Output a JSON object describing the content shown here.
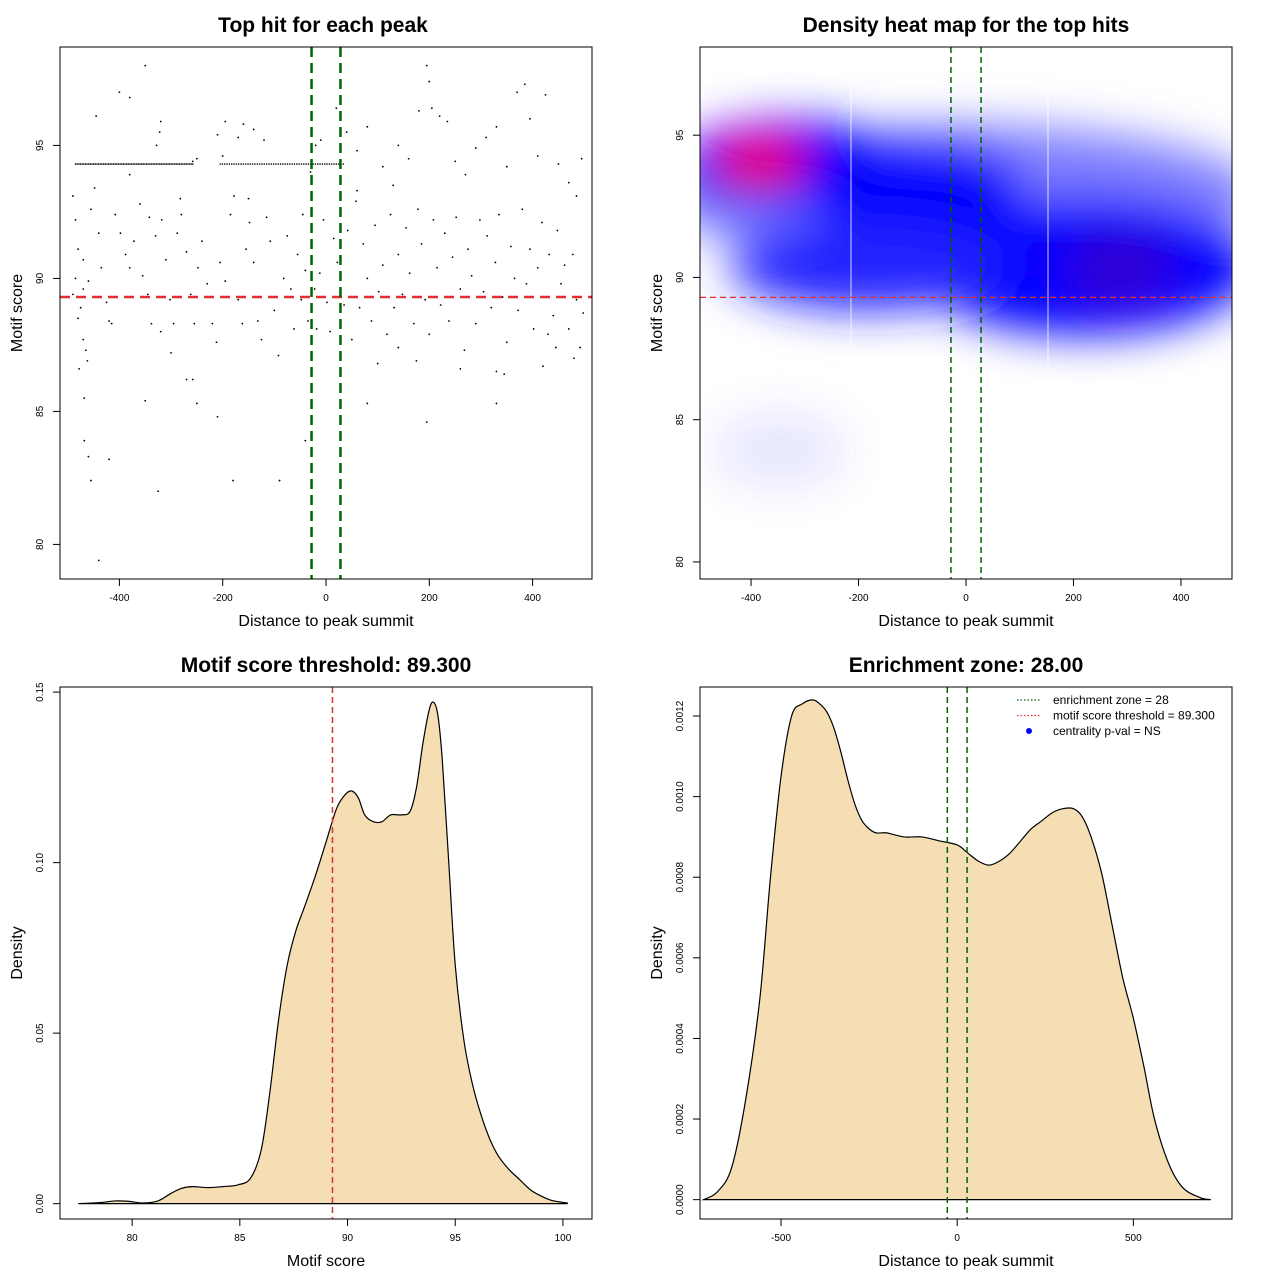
{
  "chart_data": [
    {
      "id": "scatter",
      "type": "scatter",
      "title": "Top hit for each peak",
      "xlabel": "Distance to peak summit",
      "ylabel": "Motif score",
      "xlim": [
        -515,
        515
      ],
      "ylim": [
        78.7,
        98.7
      ],
      "xticks": [
        -400,
        -200,
        0,
        200,
        400
      ],
      "yticks": [
        80,
        85,
        90,
        95
      ],
      "threshold": 89.3,
      "zone": [
        -28,
        28
      ],
      "line_colors": {
        "threshold": "#e03030",
        "zone": "#006400"
      },
      "points": [
        [
          -350,
          98.0
        ],
        [
          -380,
          96.8
        ],
        [
          -400,
          97.0
        ],
        [
          -445,
          96.1
        ],
        [
          -320,
          95.9
        ],
        [
          -322,
          95.5
        ],
        [
          -328,
          95.0
        ],
        [
          -195,
          95.9
        ],
        [
          -160,
          95.8
        ],
        [
          -140,
          95.6
        ],
        [
          -210,
          95.4
        ],
        [
          -170,
          95.3
        ],
        [
          -120,
          95.2
        ],
        [
          -200,
          94.6
        ],
        [
          -250,
          94.5
        ],
        [
          -258,
          94.4
        ],
        [
          -30,
          94.0
        ],
        [
          -20,
          95.0
        ],
        [
          -10,
          95.2
        ],
        [
          20,
          96.4
        ],
        [
          40,
          95.5
        ],
        [
          60,
          94.8
        ],
        [
          80,
          95.7
        ],
        [
          110,
          94.2
        ],
        [
          140,
          95.0
        ],
        [
          160,
          94.5
        ],
        [
          180,
          96.3
        ],
        [
          195,
          98.0
        ],
        [
          200,
          97.4
        ],
        [
          205,
          96.4
        ],
        [
          220,
          96.1
        ],
        [
          235,
          95.9
        ],
        [
          250,
          94.4
        ],
        [
          290,
          94.9
        ],
        [
          310,
          95.3
        ],
        [
          330,
          95.7
        ],
        [
          350,
          94.2
        ],
        [
          370,
          97.0
        ],
        [
          385,
          97.3
        ],
        [
          395,
          96.0
        ],
        [
          410,
          94.6
        ],
        [
          425,
          96.9
        ],
        [
          450,
          94.3
        ],
        [
          470,
          93.6
        ],
        [
          485,
          93.1
        ],
        [
          495,
          94.5
        ],
        [
          270,
          93.9
        ],
        [
          130,
          93.5
        ],
        [
          -490,
          93.1
        ],
        [
          -485,
          92.2
        ],
        [
          -480,
          91.1
        ],
        [
          -470,
          90.7
        ],
        [
          -460,
          89.9
        ],
        [
          -455,
          92.6
        ],
        [
          -448,
          93.4
        ],
        [
          -440,
          91.7
        ],
        [
          -435,
          90.4
        ],
        [
          -425,
          89.1
        ],
        [
          -420,
          88.4
        ],
        [
          -415,
          88.3
        ],
        [
          -408,
          92.4
        ],
        [
          -398,
          91.7
        ],
        [
          -388,
          90.9
        ],
        [
          -380,
          90.4
        ],
        [
          -372,
          91.4
        ],
        [
          -360,
          92.8
        ],
        [
          -355,
          90.1
        ],
        [
          -345,
          89.4
        ],
        [
          -338,
          88.3
        ],
        [
          -330,
          91.6
        ],
        [
          -318,
          92.2
        ],
        [
          -310,
          90.7
        ],
        [
          -302,
          89.2
        ],
        [
          -295,
          88.3
        ],
        [
          -288,
          91.7
        ],
        [
          -280,
          92.4
        ],
        [
          -270,
          91.0
        ],
        [
          -262,
          89.4
        ],
        [
          -255,
          88.3
        ],
        [
          -248,
          90.4
        ],
        [
          -240,
          91.4
        ],
        [
          -230,
          89.8
        ],
        [
          -220,
          88.3
        ],
        [
          -212,
          87.6
        ],
        [
          -205,
          90.6
        ],
        [
          -195,
          89.9
        ],
        [
          -185,
          92.4
        ],
        [
          -178,
          93.1
        ],
        [
          -170,
          89.2
        ],
        [
          -162,
          88.3
        ],
        [
          -155,
          91.1
        ],
        [
          -148,
          92.1
        ],
        [
          -140,
          90.6
        ],
        [
          -132,
          88.4
        ],
        [
          -125,
          87.7
        ],
        [
          -115,
          92.3
        ],
        [
          -108,
          91.4
        ],
        [
          -100,
          88.8
        ],
        [
          -92,
          87.1
        ],
        [
          -82,
          90.0
        ],
        [
          -75,
          91.6
        ],
        [
          -68,
          89.6
        ],
        [
          -62,
          88.1
        ],
        [
          -55,
          90.9
        ],
        [
          -48,
          89.2
        ],
        [
          -45,
          92.4
        ],
        [
          -40,
          90.3
        ],
        [
          -35,
          88.4
        ],
        [
          -28,
          91.4
        ],
        [
          -22,
          89.6
        ],
        [
          -18,
          88.1
        ],
        [
          -12,
          90.2
        ],
        [
          -5,
          92.2
        ],
        [
          2,
          89.1
        ],
        [
          8,
          88.0
        ],
        [
          15,
          91.5
        ],
        [
          22,
          90.6
        ],
        [
          35,
          89.0
        ],
        [
          42,
          91.8
        ],
        [
          50,
          87.7
        ],
        [
          58,
          92.9
        ],
        [
          65,
          88.9
        ],
        [
          72,
          91.3
        ],
        [
          80,
          90.0
        ],
        [
          88,
          88.4
        ],
        [
          95,
          92.0
        ],
        [
          102,
          89.5
        ],
        [
          110,
          90.5
        ],
        [
          118,
          87.9
        ],
        [
          125,
          92.4
        ],
        [
          132,
          88.9
        ],
        [
          140,
          90.9
        ],
        [
          148,
          89.4
        ],
        [
          155,
          91.9
        ],
        [
          162,
          90.2
        ],
        [
          170,
          88.3
        ],
        [
          178,
          92.6
        ],
        [
          185,
          91.3
        ],
        [
          192,
          89.2
        ],
        [
          200,
          87.9
        ],
        [
          208,
          92.2
        ],
        [
          215,
          90.4
        ],
        [
          222,
          89.0
        ],
        [
          230,
          91.7
        ],
        [
          238,
          88.4
        ],
        [
          245,
          90.8
        ],
        [
          252,
          92.3
        ],
        [
          260,
          89.6
        ],
        [
          268,
          87.3
        ],
        [
          275,
          91.1
        ],
        [
          282,
          90.1
        ],
        [
          290,
          88.3
        ],
        [
          298,
          92.2
        ],
        [
          305,
          89.5
        ],
        [
          312,
          91.6
        ],
        [
          320,
          88.9
        ],
        [
          328,
          90.6
        ],
        [
          335,
          92.4
        ],
        [
          342,
          89.3
        ],
        [
          350,
          87.6
        ],
        [
          358,
          91.2
        ],
        [
          365,
          90.0
        ],
        [
          372,
          88.8
        ],
        [
          380,
          92.6
        ],
        [
          388,
          89.8
        ],
        [
          395,
          91.1
        ],
        [
          402,
          88.1
        ],
        [
          410,
          90.4
        ],
        [
          418,
          92.1
        ],
        [
          425,
          89.3
        ],
        [
          432,
          90.9
        ],
        [
          440,
          88.6
        ],
        [
          448,
          91.8
        ],
        [
          455,
          89.8
        ],
        [
          462,
          90.5
        ],
        [
          470,
          88.1
        ],
        [
          478,
          90.9
        ],
        [
          485,
          89.2
        ],
        [
          492,
          87.4
        ],
        [
          498,
          88.7
        ],
        [
          -470,
          87.7
        ],
        [
          -465,
          87.3
        ],
        [
          -478,
          86.6
        ],
        [
          -462,
          86.9
        ],
        [
          -475,
          88.9
        ],
        [
          -490,
          89.4
        ],
        [
          -485,
          90.0
        ],
        [
          -480,
          88.5
        ],
        [
          -470,
          89.6
        ],
        [
          -468,
          85.5
        ],
        [
          -350,
          85.4
        ],
        [
          -320,
          88.0
        ],
        [
          -300,
          87.2
        ],
        [
          -270,
          86.2
        ],
        [
          -258,
          86.2
        ],
        [
          -250,
          85.3
        ],
        [
          -210,
          84.8
        ],
        [
          -180,
          82.4
        ],
        [
          -90,
          82.4
        ],
        [
          -40,
          83.9
        ],
        [
          195,
          84.6
        ],
        [
          330,
          85.3
        ],
        [
          -468,
          83.9
        ],
        [
          -460,
          83.3
        ],
        [
          -455,
          82.4
        ],
        [
          -420,
          83.2
        ],
        [
          -325,
          82.0
        ],
        [
          -440,
          79.4
        ],
        [
          80,
          85.3
        ],
        [
          100,
          86.8
        ],
        [
          140,
          87.4
        ],
        [
          175,
          86.9
        ],
        [
          260,
          86.6
        ],
        [
          330,
          86.5
        ],
        [
          345,
          86.4
        ],
        [
          420,
          86.7
        ],
        [
          430,
          87.9
        ],
        [
          445,
          87.4
        ],
        [
          480,
          87.0
        ],
        [
          -380,
          93.9
        ],
        [
          -342,
          92.3
        ],
        [
          -282,
          93.0
        ],
        [
          -150,
          93.0
        ],
        [
          60,
          93.3
        ]
      ]
    },
    {
      "id": "heatmap",
      "type": "heatmap",
      "title": "Density heat map for the top hits",
      "xlabel": "Distance to peak summit",
      "ylabel": "Motif score",
      "xlim": [
        -495,
        495
      ],
      "ylim": [
        79.4,
        98.1
      ],
      "xticks": [
        -400,
        -200,
        0,
        200,
        400
      ],
      "yticks": [
        80,
        85,
        90,
        95
      ],
      "threshold": 89.3,
      "zone": [
        -28,
        28
      ],
      "line_colors": {
        "threshold": "#e03030",
        "zone": "#006400"
      },
      "colors": {
        "low": "#ffffff",
        "mid": "#0000ff",
        "high": "#ff0000"
      }
    },
    {
      "id": "score_density",
      "type": "area",
      "title": "Motif score threshold: 89.300",
      "xlabel": "Motif score",
      "ylabel": "Density",
      "xlim": [
        76.65,
        101.35
      ],
      "ylim": [
        -0.0045,
        0.1515
      ],
      "xticks": [
        80,
        85,
        90,
        95,
        100
      ],
      "yticks": [
        0.0,
        0.05,
        0.1,
        0.15
      ],
      "ytick_labels": [
        "0.00",
        "0.05",
        "0.10",
        "0.15"
      ],
      "threshold": 89.3,
      "fill_color": "#f5deb3",
      "line_colors": {
        "threshold": "#e03030"
      },
      "x": [
        77.5,
        78.5,
        79.2,
        79.8,
        80.5,
        81.2,
        81.8,
        82.3,
        82.8,
        83.5,
        84.2,
        84.9,
        85.5,
        86.0,
        86.4,
        86.8,
        87.2,
        87.6,
        88.0,
        88.5,
        89.0,
        89.5,
        89.9,
        90.2,
        90.5,
        90.8,
        91.2,
        91.6,
        92.0,
        92.5,
        92.9,
        93.2,
        93.5,
        93.8,
        94.0,
        94.2,
        94.4,
        94.7,
        95.0,
        95.4,
        95.8,
        96.2,
        96.6,
        97.0,
        97.5,
        98.0,
        98.5,
        99.0,
        99.5,
        100.2
      ],
      "y": [
        0.0,
        0.0003,
        0.0008,
        0.0007,
        0.0002,
        0.0008,
        0.003,
        0.0045,
        0.005,
        0.0047,
        0.005,
        0.0055,
        0.0075,
        0.016,
        0.033,
        0.054,
        0.07,
        0.08,
        0.087,
        0.096,
        0.106,
        0.116,
        0.12,
        0.121,
        0.119,
        0.114,
        0.112,
        0.112,
        0.114,
        0.114,
        0.115,
        0.122,
        0.135,
        0.145,
        0.147,
        0.143,
        0.13,
        0.1,
        0.07,
        0.048,
        0.035,
        0.026,
        0.019,
        0.014,
        0.01,
        0.007,
        0.004,
        0.0022,
        0.0009,
        0.0002
      ]
    },
    {
      "id": "distance_density",
      "type": "area",
      "title": "Enrichment zone: 28.00",
      "xlabel": "Distance to peak summit",
      "ylabel": "Density",
      "xlim": [
        -730,
        780
      ],
      "ylim": [
        -4.8e-05,
        0.001272
      ],
      "xticks": [
        -500,
        0,
        500
      ],
      "yticks": [
        0.0,
        0.0002,
        0.0004,
        0.0006,
        0.0008,
        0.001,
        0.0012
      ],
      "ytick_labels": [
        "0.0000",
        "0.0002",
        "0.0004",
        "0.0006",
        "0.0008",
        "0.0010",
        "0.0012"
      ],
      "zone": [
        -28,
        28
      ],
      "fill_color": "#f5deb3",
      "line_colors": {
        "zone": "#006400"
      },
      "x": [
        -720,
        -680,
        -640,
        -600,
        -560,
        -530,
        -500,
        -470,
        -440,
        -410,
        -390,
        -370,
        -350,
        -330,
        -310,
        -290,
        -270,
        -250,
        -230,
        -200,
        -150,
        -100,
        -50,
        0,
        30,
        60,
        90,
        120,
        150,
        180,
        210,
        240,
        270,
        300,
        330,
        355,
        380,
        410,
        440,
        470,
        500,
        530,
        560,
        600,
        640,
        690,
        720
      ],
      "y": [
        0.0,
        2e-05,
        8e-05,
        0.00025,
        0.0005,
        0.0008,
        0.00105,
        0.0012,
        0.00123,
        0.00124,
        0.00123,
        0.00121,
        0.00117,
        0.00111,
        0.00104,
        0.00098,
        0.00094,
        0.00092,
        0.00091,
        0.00091,
        0.0009,
        0.0009,
        0.00089,
        0.00088,
        0.00086,
        0.00084,
        0.00083,
        0.00084,
        0.00086,
        0.00089,
        0.00092,
        0.00094,
        0.00096,
        0.00097,
        0.00097,
        0.00095,
        0.0009,
        0.00081,
        0.00068,
        0.00055,
        0.00045,
        0.00033,
        0.0002,
        9e-05,
        3e-05,
        5e-06,
        0.0
      ],
      "legend": {
        "position": "top-right",
        "items": [
          {
            "label": "enrichment zone = 28",
            "color": "#006400",
            "kind": "dotted-line"
          },
          {
            "label": "motif score threshold = 89.300",
            "color": "#e03030",
            "kind": "dotted-line"
          },
          {
            "label": "centrality p-val = NS",
            "color": "#0000ff",
            "kind": "point"
          }
        ]
      }
    }
  ]
}
